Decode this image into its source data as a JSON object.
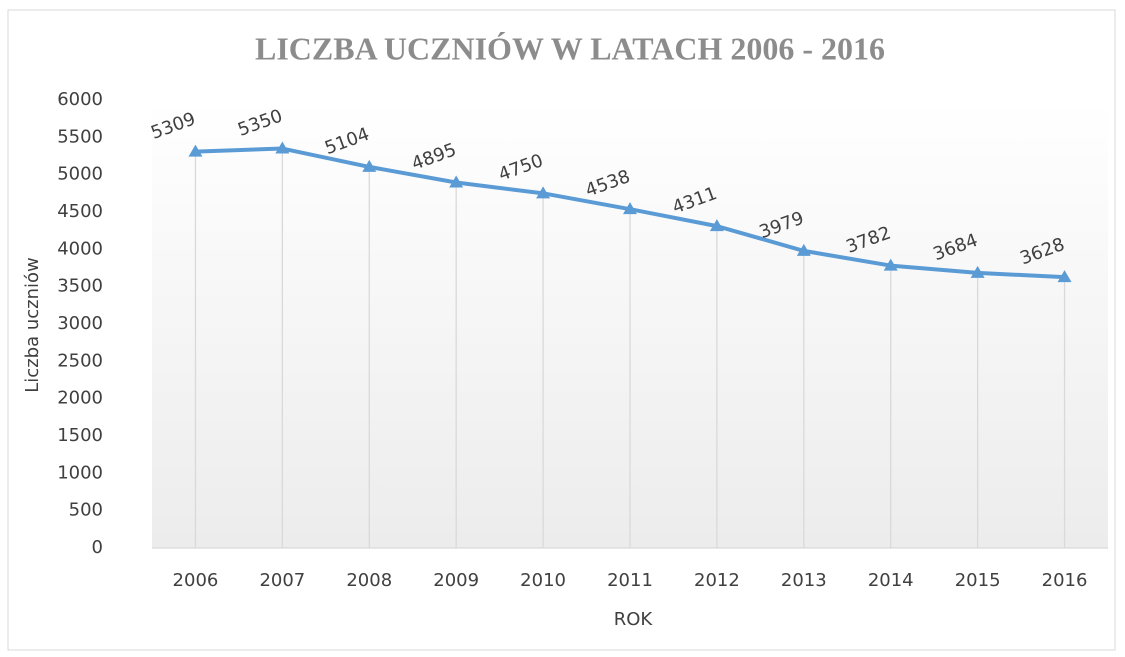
{
  "chart_data": {
    "type": "line",
    "title": "LICZBA UCZNIÓW W LATACH 2006 - 2016",
    "x_label": "ROK",
    "y_label": "Liczba uczniów",
    "categories": [
      "2006",
      "2007",
      "2008",
      "2009",
      "2010",
      "2011",
      "2012",
      "2013",
      "2014",
      "2015",
      "2016"
    ],
    "series": [
      {
        "name": "Liczba uczniów",
        "color": "#5b9bd5",
        "values": [
          5309,
          5350,
          5104,
          4895,
          4750,
          4538,
          4311,
          3979,
          3782,
          3684,
          3628
        ]
      }
    ],
    "ylim": [
      0,
      6000
    ],
    "yticks": [
      0,
      500,
      1000,
      1500,
      2000,
      2500,
      3000,
      3500,
      4000,
      4500,
      5000,
      5500,
      6000
    ],
    "grid": false,
    "data_labels": true,
    "drop_lines": true,
    "marker": "triangle"
  }
}
